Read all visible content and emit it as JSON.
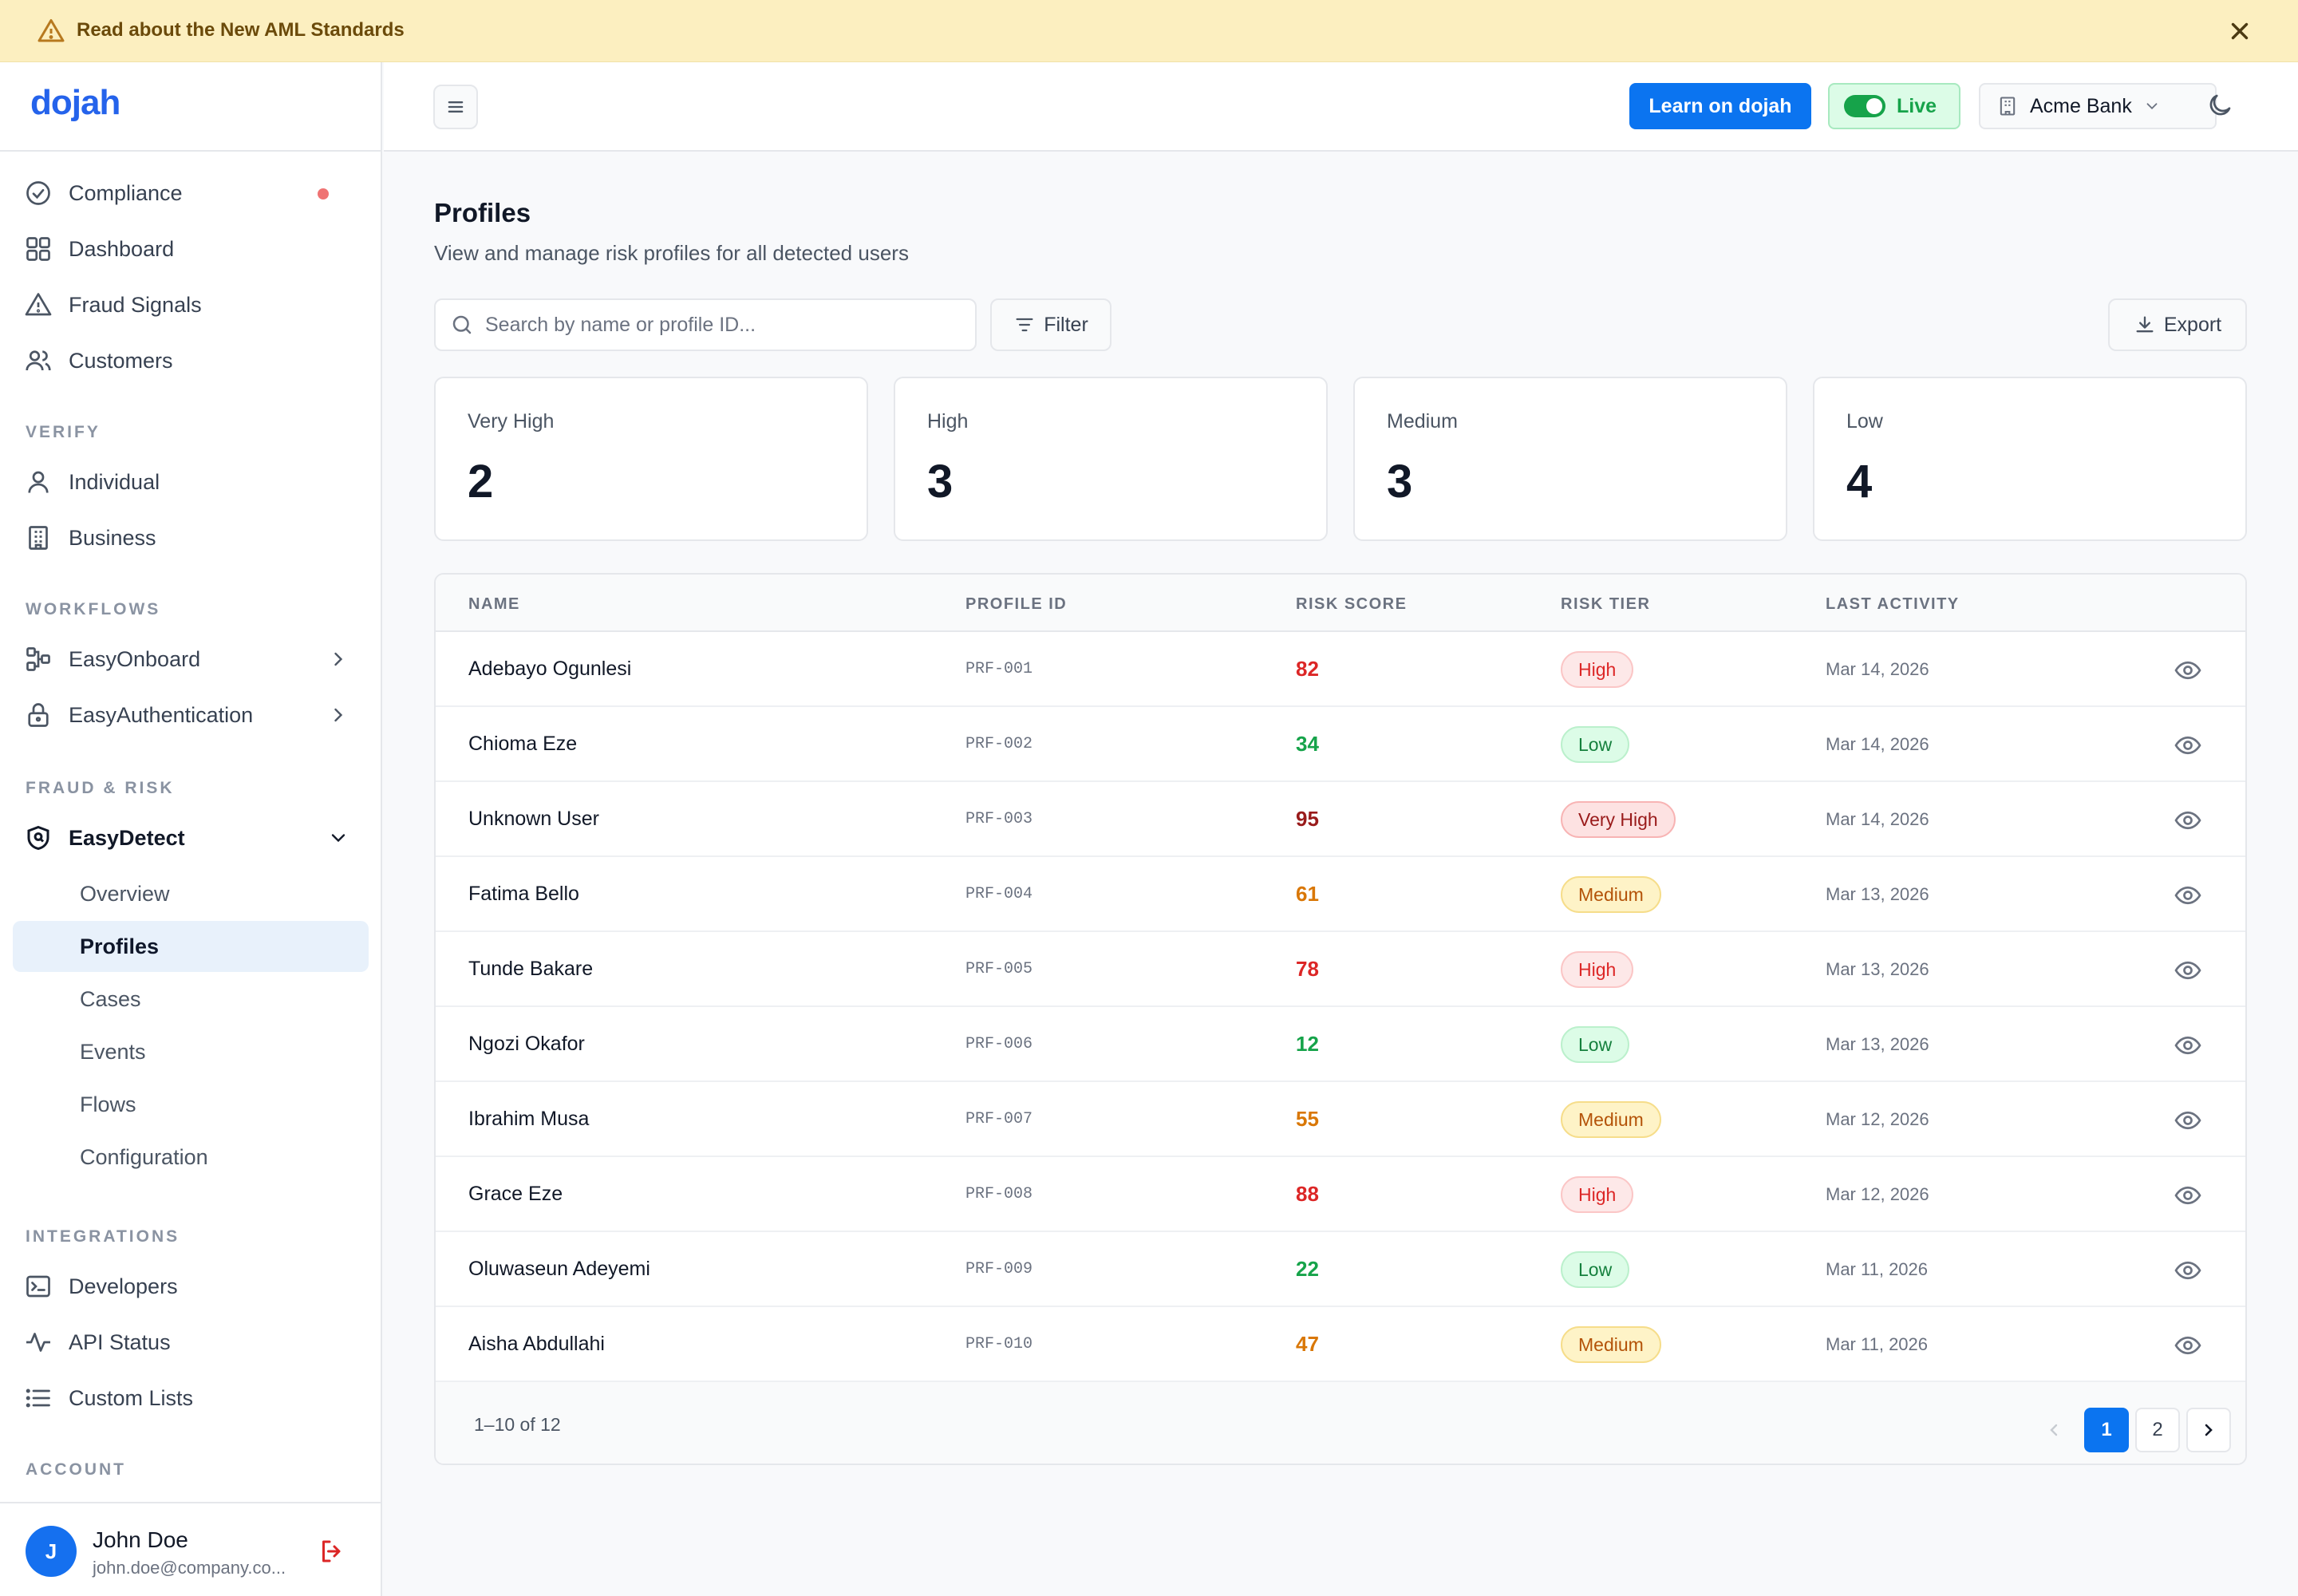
{
  "banner": {
    "text": "Read about the New AML Standards"
  },
  "brand": {
    "logo": "dojah",
    "accent": "#0b74f0"
  },
  "sidebar": {
    "top_items": [
      {
        "label": "Compliance",
        "icon": "check-circle-icon",
        "has_dot": true
      },
      {
        "label": "Dashboard",
        "icon": "grid-icon"
      },
      {
        "label": "Fraud Signals",
        "icon": "warning-icon"
      },
      {
        "label": "Customers",
        "icon": "users-icon"
      }
    ],
    "sections": {
      "verify": "VERIFY",
      "workflows": "WORKFLOWS",
      "fraud": "FRAUD & RISK",
      "integrations": "INTEGRATIONS",
      "account": "ACCOUNT"
    },
    "verify_items": [
      {
        "label": "Individual",
        "icon": "user-icon"
      },
      {
        "label": "Business",
        "icon": "building-icon"
      }
    ],
    "workflow_items": [
      {
        "label": "EasyOnboard",
        "icon": "flow-icon"
      },
      {
        "label": "EasyAuthentication",
        "icon": "lock-icon"
      }
    ],
    "fraud_parent": {
      "label": "EasyDetect",
      "icon": "shield-icon"
    },
    "fraud_sub": [
      "Overview",
      "Profiles",
      "Cases",
      "Events",
      "Flows",
      "Configuration"
    ],
    "active_sub": "Profiles",
    "integration_items": [
      {
        "label": "Developers",
        "icon": "terminal-icon"
      },
      {
        "label": "API Status",
        "icon": "activity-icon"
      },
      {
        "label": "Custom Lists",
        "icon": "list-icon"
      }
    ],
    "user": {
      "initial": "J",
      "name": "John Doe",
      "email": "john.doe@company.co..."
    }
  },
  "header": {
    "learn_label": "Learn on dojah",
    "live_label": "Live",
    "org_label": "Acme Bank"
  },
  "page": {
    "title": "Profiles",
    "subtitle": "View and manage risk profiles for all detected users",
    "search_placeholder": "Search by name or profile ID...",
    "filter_label": "Filter",
    "export_label": "Export"
  },
  "stats": [
    {
      "label": "Very High",
      "value": "2"
    },
    {
      "label": "High",
      "value": "3"
    },
    {
      "label": "Medium",
      "value": "3"
    },
    {
      "label": "Low",
      "value": "4"
    }
  ],
  "table": {
    "columns": [
      "NAME",
      "PROFILE ID",
      "RISK SCORE",
      "RISK TIER",
      "LAST ACTIVITY"
    ],
    "rows": [
      {
        "name": "Adebayo Ogunlesi",
        "id": "PRF-001",
        "score": "82",
        "tier": "High",
        "date": "Mar 14, 2026"
      },
      {
        "name": "Chioma Eze",
        "id": "PRF-002",
        "score": "34",
        "tier": "Low",
        "date": "Mar 14, 2026"
      },
      {
        "name": "Unknown User",
        "id": "PRF-003",
        "score": "95",
        "tier": "Very High",
        "date": "Mar 14, 2026"
      },
      {
        "name": "Fatima Bello",
        "id": "PRF-004",
        "score": "61",
        "tier": "Medium",
        "date": "Mar 13, 2026"
      },
      {
        "name": "Tunde Bakare",
        "id": "PRF-005",
        "score": "78",
        "tier": "High",
        "date": "Mar 13, 2026"
      },
      {
        "name": "Ngozi Okafor",
        "id": "PRF-006",
        "score": "12",
        "tier": "Low",
        "date": "Mar 13, 2026"
      },
      {
        "name": "Ibrahim Musa",
        "id": "PRF-007",
        "score": "55",
        "tier": "Medium",
        "date": "Mar 12, 2026"
      },
      {
        "name": "Grace Eze",
        "id": "PRF-008",
        "score": "88",
        "tier": "High",
        "date": "Mar 12, 2026"
      },
      {
        "name": "Oluwaseun Adeyemi",
        "id": "PRF-009",
        "score": "22",
        "tier": "Low",
        "date": "Mar 11, 2026"
      },
      {
        "name": "Aisha Abdullahi",
        "id": "PRF-010",
        "score": "47",
        "tier": "Medium",
        "date": "Mar 11, 2026"
      }
    ],
    "range_text": "1–10 of 12",
    "pages": [
      "1",
      "2"
    ],
    "current_page": "1"
  },
  "tier_colors": {
    "Very High": {
      "bg": "#fde2e2",
      "border": "#f8b4b4",
      "text": "#991b1b"
    },
    "High": {
      "bg": "#fde8e8",
      "border": "#fbc6c6",
      "text": "#dc2626"
    },
    "Medium": {
      "bg": "#fef3c7",
      "border": "#f6dd8a",
      "text": "#b45309"
    },
    "Low": {
      "bg": "#dcfce7",
      "border": "#bbf0cc",
      "text": "#15803d"
    }
  },
  "score_colors": {
    "Very High": "#991b1b",
    "High": "#dc2626",
    "Medium": "#d97706",
    "Low": "#16a34a"
  }
}
